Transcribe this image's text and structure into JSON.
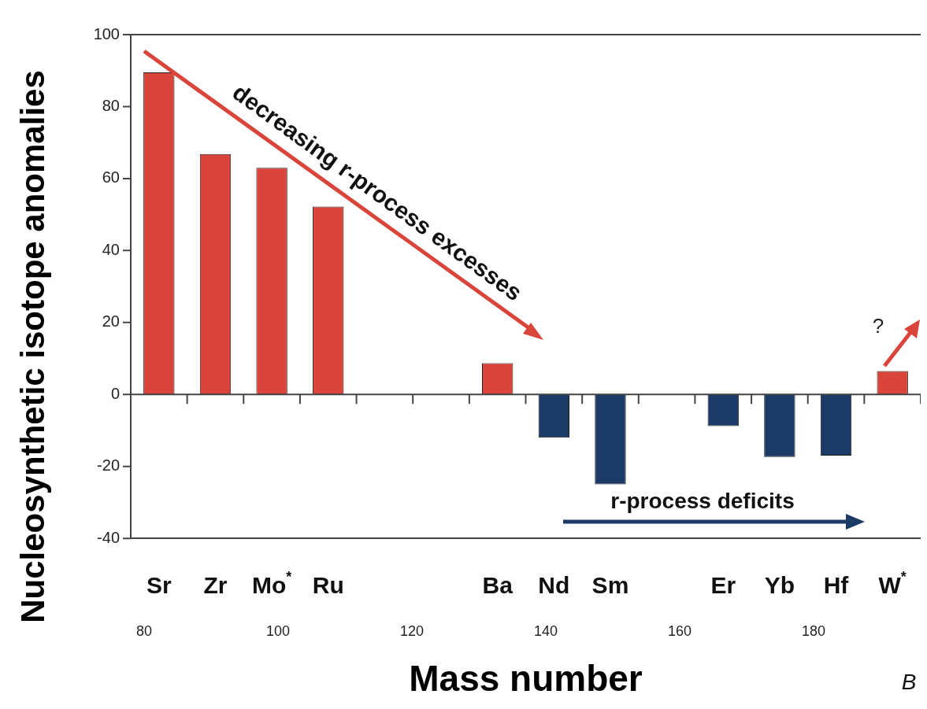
{
  "chart_data": {
    "type": "bar",
    "ylabel": "Nucleosynthetic isotope anomalies",
    "xlabel": "Mass number",
    "categories": [
      "Sr",
      "Zr",
      "Mo$^{*}$",
      "Ru",
      null,
      null,
      "Ba",
      "Nd",
      "Sm",
      null,
      "Er",
      "Yb",
      "Hf",
      "W$^{*}$"
    ],
    "values": [
      89.5,
      66.8,
      63,
      52.2,
      null,
      null,
      8.7,
      -12,
      -25,
      null,
      -8.8,
      -17.4,
      -17,
      6.5
    ],
    "colors": [
      "#d9453a",
      "#d9453a",
      "#d9453a",
      "#d9453a",
      null,
      null,
      "#d9453a",
      "#1b3a66",
      "#1b3a66",
      null,
      "#1b3a66",
      "#1b3a66",
      "#1b3a66",
      "#d9453a"
    ],
    "ylim": [
      -40,
      100
    ],
    "yticks": [
      -40,
      -20,
      0,
      20,
      40,
      60,
      80,
      100
    ],
    "x2lim": [
      78,
      196
    ],
    "x2ticks": [
      80,
      100,
      120,
      140,
      160,
      180
    ],
    "legend": false,
    "annotations": [
      "decreasing r-process excesses",
      "r-process deficits",
      "?",
      "B"
    ]
  }
}
